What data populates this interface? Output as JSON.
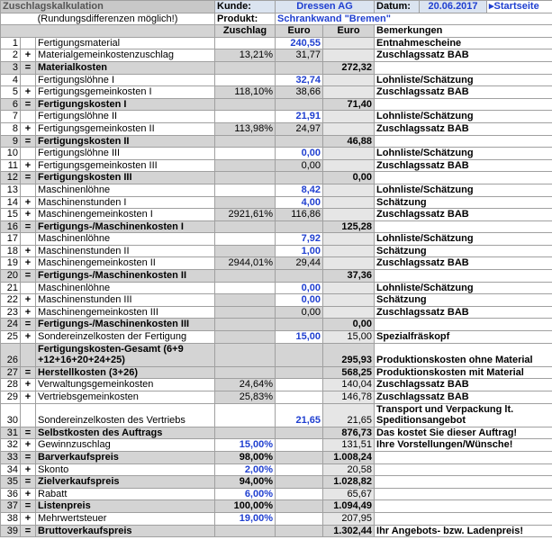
{
  "header": {
    "title": "Zuschlagskalkulation",
    "note": "(Rundungsdifferenzen möglich!)",
    "customer_label": "Kunde:",
    "customer": "Dressen AG",
    "date_label": "Datum:",
    "date": "20.06.2017",
    "link": "Startseite",
    "product_label": "Produkt:",
    "product": "Schrankwand \"Bremen\""
  },
  "columns": [
    "Zuschlag",
    "Euro",
    "Euro",
    "Bemerkungen"
  ],
  "colors": {
    "blue": "#1f3fd0",
    "gray": "#d4d4d4",
    "light": "#e6e6e6",
    "head": "#dbe4f0"
  },
  "rows": [
    {
      "no": "1",
      "label": "Fertigungsmaterial",
      "euro1": "240,55",
      "remark": "Entnahmescheine",
      "blue": [
        "euro1"
      ]
    },
    {
      "no": "2",
      "op": "+",
      "label": "Materialgemeinkostenzuschlag",
      "rate": "13,21%",
      "euro1": "31,77",
      "remark": "Zuschlagssatz BAB"
    },
    {
      "no": "3",
      "op": "=",
      "label": "Materialkosten",
      "euro2": "272,32",
      "total": true
    },
    {
      "no": "4",
      "label": "Fertigungslöhne I",
      "euro1": "32,74",
      "remark": "Lohnliste/Schätzung",
      "blue": [
        "euro1"
      ]
    },
    {
      "no": "5",
      "op": "+",
      "label": "Fertigungsgemeinkosten I",
      "rate": "118,10%",
      "euro1": "38,66",
      "remark": "Zuschlagssatz BAB"
    },
    {
      "no": "6",
      "op": "=",
      "label": "Fertigungskosten I",
      "euro2": "71,40",
      "total": true
    },
    {
      "no": "7",
      "label": "Fertigungslöhne II",
      "euro1": "21,91",
      "remark": "Lohnliste/Schätzung",
      "blue": [
        "euro1"
      ]
    },
    {
      "no": "8",
      "op": "+",
      "label": "Fertigungsgemeinkosten II",
      "rate": "113,98%",
      "euro1": "24,97",
      "remark": "Zuschlagssatz BAB"
    },
    {
      "no": "9",
      "op": "=",
      "label": "Fertigungskosten II",
      "euro2": "46,88",
      "total": true
    },
    {
      "no": "10",
      "label": "Fertigungslöhne III",
      "euro1": "0,00",
      "remark": "Lohnliste/Schätzung",
      "blue": [
        "euro1"
      ]
    },
    {
      "no": "11",
      "op": "+",
      "label": "Fertigungsgemeinkosten III",
      "euro1": "0,00",
      "remark": "Zuschlagssatz BAB"
    },
    {
      "no": "12",
      "op": "=",
      "label": "Fertigungskosten III",
      "euro2": "0,00",
      "total": true
    },
    {
      "no": "13",
      "label": "Maschinenlöhne",
      "euro1": "8,42",
      "remark": "Lohnliste/Schätzung",
      "blue": [
        "euro1"
      ]
    },
    {
      "no": "14",
      "op": "+",
      "label": "Maschinenstunden I",
      "euro1": "4,00",
      "remark": "Schätzung",
      "blue": [
        "euro1"
      ]
    },
    {
      "no": "15",
      "op": "+",
      "label": "Maschinengemeinkosten I",
      "rate": "2921,61%",
      "euro1": "116,86",
      "remark": "Zuschlagssatz BAB"
    },
    {
      "no": "16",
      "op": "=",
      "label": "Fertigungs-/Maschinenkosten I",
      "euro2": "125,28",
      "total": true
    },
    {
      "no": "17",
      "label": "Maschinenlöhne",
      "euro1": "7,92",
      "remark": "Lohnliste/Schätzung",
      "blue": [
        "euro1"
      ]
    },
    {
      "no": "18",
      "op": "+",
      "label": "Maschinenstunden II",
      "euro1": "1,00",
      "remark": "Schätzung",
      "blue": [
        "euro1"
      ]
    },
    {
      "no": "19",
      "op": "+",
      "label": "Maschinengemeinkosten II",
      "rate": "2944,01%",
      "euro1": "29,44",
      "remark": "Zuschlagssatz BAB"
    },
    {
      "no": "20",
      "op": "=",
      "label": "Fertigungs-/Maschinenkosten II",
      "euro2": "37,36",
      "total": true
    },
    {
      "no": "21",
      "label": "Maschinenlöhne",
      "euro1": "0,00",
      "remark": "Lohnliste/Schätzung",
      "blue": [
        "euro1"
      ]
    },
    {
      "no": "22",
      "op": "+",
      "label": "Maschinenstunden III",
      "euro1": "0,00",
      "remark": "Schätzung",
      "blue": [
        "euro1"
      ]
    },
    {
      "no": "23",
      "op": "+",
      "label": "Maschinengemeinkosten III",
      "euro1": "0,00",
      "remark": "Zuschlagssatz BAB"
    },
    {
      "no": "24",
      "op": "=",
      "label": "Fertigungs-/Maschinenkosten III",
      "euro2": "0,00",
      "total": true
    },
    {
      "no": "25",
      "op": "+",
      "label": "Sondereinzelkosten der Fertigung",
      "euro1": "15,00",
      "euro2": "15,00",
      "remark": "Spezialfräskopf",
      "blue": [
        "euro1"
      ]
    },
    {
      "no": "26",
      "label": "Fertigungskosten-Gesamt",
      "note": "(6+9 +12+16+20+24+25)",
      "euro2": "295,93",
      "remark": "Produktionskosten ohne Material",
      "total": true
    },
    {
      "no": "27",
      "op": "=",
      "label": "Herstellkosten",
      "note": "(3+26)",
      "euro2": "568,25",
      "remark": "Produktionskosten mit Material",
      "total": true
    },
    {
      "no": "28",
      "op": "+",
      "label": "Verwaltungsgemeinkosten",
      "rate": "24,64%",
      "euro2": "140,04",
      "remark": "Zuschlagssatz BAB"
    },
    {
      "no": "29",
      "op": "+",
      "label": "Vertriebsgemeinkosten",
      "rate": "25,83%",
      "euro2": "146,78",
      "remark": "Zuschlagssatz BAB"
    },
    {
      "no": "30",
      "label": "Sondereinzelkosten des Vertriebs",
      "euro1": "21,65",
      "euro2": "21,65",
      "remark": "Transport und Verpackung lt. Speditionsangebot",
      "blue": [
        "euro1"
      ]
    },
    {
      "no": "31",
      "op": "=",
      "label": "Selbstkosten des Auftrags",
      "euro2": "876,73",
      "remark": "Das kostet Sie dieser Auftrag!",
      "total": true
    },
    {
      "no": "32",
      "op": "+",
      "label": "Gewinnzuschlag",
      "rate": "15,00%",
      "euro2": "131,51",
      "remark": "Ihre Vorstellungen/Wünsche!",
      "blue": [
        "rate"
      ]
    },
    {
      "no": "33",
      "op": "=",
      "label": "Barverkaufspreis",
      "rate": "98,00%",
      "euro2": "1.008,24",
      "total": true
    },
    {
      "no": "34",
      "op": "+",
      "label": "Skonto",
      "rate": "2,00%",
      "euro2": "20,58",
      "blue": [
        "rate"
      ]
    },
    {
      "no": "35",
      "op": "=",
      "label": "Zielverkaufspreis",
      "rate": "94,00%",
      "euro2": "1.028,82",
      "total": true
    },
    {
      "no": "36",
      "op": "+",
      "label": "Rabatt",
      "rate": "6,00%",
      "euro2": "65,67",
      "blue": [
        "rate"
      ]
    },
    {
      "no": "37",
      "op": "=",
      "label": "Listenpreis",
      "rate": "100,00%",
      "euro2": "1.094,49",
      "total": true
    },
    {
      "no": "38",
      "op": "+",
      "label": "Mehrwertsteuer",
      "rate": "19,00%",
      "euro2": "207,95",
      "blue": [
        "rate"
      ]
    },
    {
      "no": "39",
      "op": "=",
      "label": "Bruttoverkaufspreis",
      "euro2": "1.302,44",
      "remark": "Ihr Angebots- bzw. Ladenpreis!",
      "total": true
    }
  ]
}
